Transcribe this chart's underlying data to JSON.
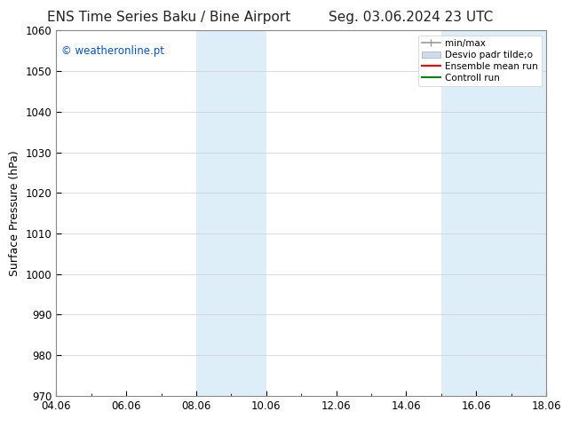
{
  "title_left": "ENS Time Series Baku / Bine Airport",
  "title_right": "Seg. 03.06.2024 23 UTC",
  "ylabel": "Surface Pressure (hPa)",
  "ylim": [
    970,
    1060
  ],
  "yticks": [
    970,
    980,
    990,
    1000,
    1010,
    1020,
    1030,
    1040,
    1050,
    1060
  ],
  "xtick_labels": [
    "04.06",
    "06.06",
    "08.06",
    "10.06",
    "12.06",
    "14.06",
    "16.06",
    "18.06"
  ],
  "xtick_positions": [
    0,
    2,
    4,
    6,
    8,
    10,
    12,
    14
  ],
  "xmin": 0,
  "xmax": 14,
  "shaded_bands": [
    {
      "x_start": 4.0,
      "x_end": 5.0,
      "color": "#ddeef8"
    },
    {
      "x_start": 5.0,
      "x_end": 6.0,
      "color": "#ddeef8"
    },
    {
      "x_start": 11.0,
      "x_end": 12.5,
      "color": "#ddeef8"
    },
    {
      "x_start": 12.5,
      "x_end": 14.0,
      "color": "#ddeef8"
    }
  ],
  "watermark_text": "© weatheronline.pt",
  "watermark_color": "#0055cc",
  "legend_entries": [
    {
      "label": "min/max",
      "color": "#999999",
      "style": "hline"
    },
    {
      "label": "Desvio padr tilde;o",
      "color": "#ccddee",
      "style": "box"
    },
    {
      "label": "Ensemble mean run",
      "color": "#ff0000",
      "style": "line"
    },
    {
      "label": "Controll run",
      "color": "#008800",
      "style": "line"
    }
  ],
  "bg_color": "#ffffff",
  "plot_bg": "#ffffff",
  "spine_color": "#888888",
  "title_fontsize": 11,
  "label_fontsize": 9,
  "tick_fontsize": 8.5,
  "legend_fontsize": 7.5
}
